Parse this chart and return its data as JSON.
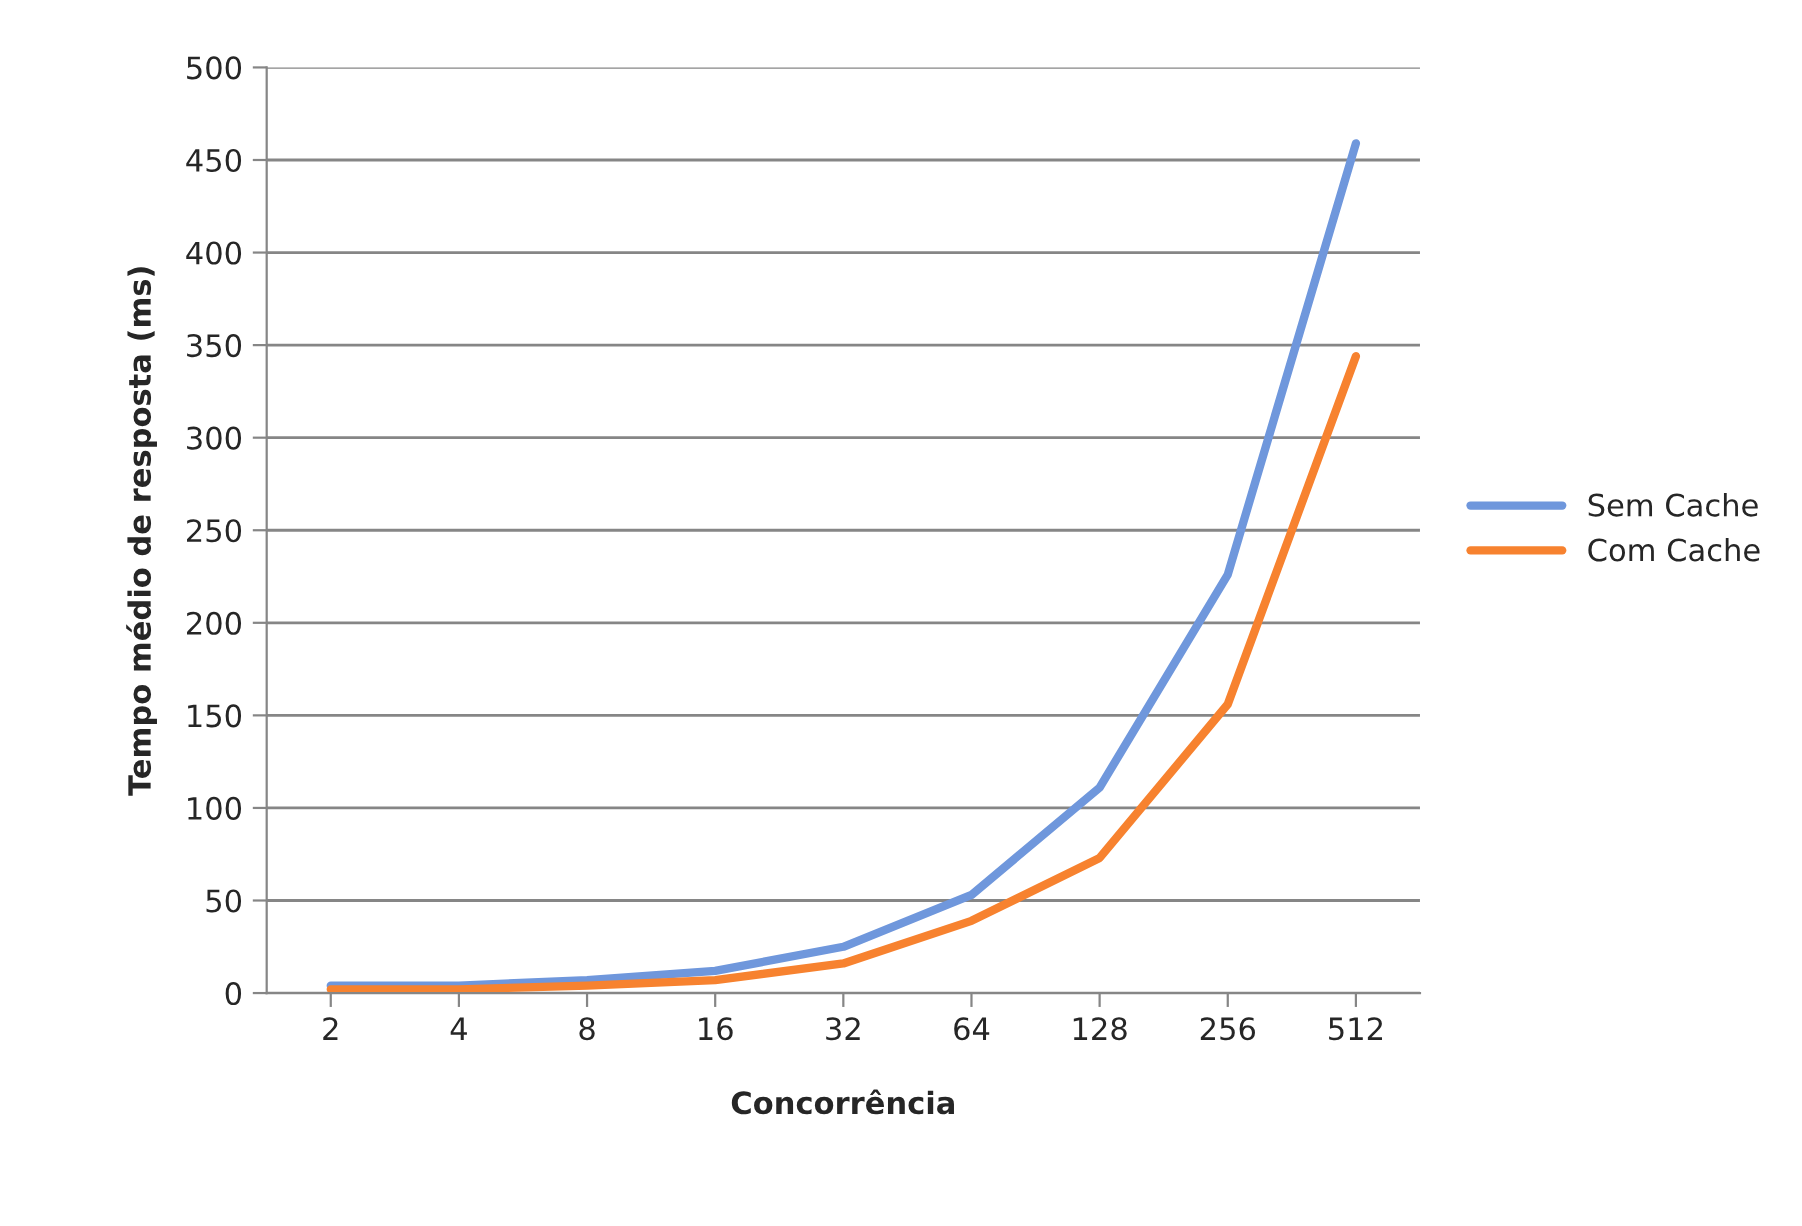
{
  "chart_data": {
    "type": "line",
    "xlabel": "Concorrência",
    "ylabel": "Tempo médio de resposta (ms)",
    "categories": [
      "2",
      "4",
      "8",
      "16",
      "32",
      "64",
      "128",
      "256",
      "512"
    ],
    "series": [
      {
        "name": "Sem Cache",
        "color": "#6f97dc",
        "values": [
          4,
          4,
          7,
          12,
          25,
          53,
          111,
          226,
          459
        ]
      },
      {
        "name": "Com Cache",
        "color": "#f7822f",
        "values": [
          2,
          2,
          4,
          7,
          16,
          39,
          73,
          156,
          344
        ]
      }
    ],
    "ylim": [
      0,
      500
    ],
    "yticks": [
      0,
      50,
      100,
      150,
      200,
      250,
      300,
      350,
      400,
      450,
      500
    ],
    "grid": "y",
    "legend": "right",
    "marker": "none",
    "line_style": "solid"
  }
}
